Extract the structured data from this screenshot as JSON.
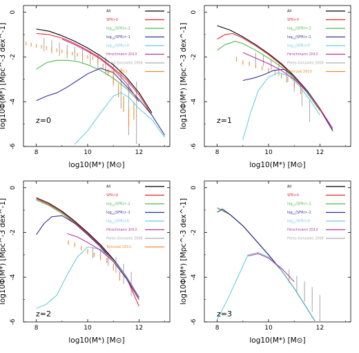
{
  "legend_colors": {
    "All": "#000000",
    "SFR>0": "#e8242c",
    "log10(SFR)>-2": "#4cb848",
    "log10(SFR)>-1": "#2f3192",
    "log10(SFR)>0": "#66ccdd",
    "Hirschmann 2013": "#bb3399",
    "Perez-Gonzalez 2008": "#aaaaaa",
    "Baldry 2012": "#f08a24",
    "Tomczak 2013": "#f08a24"
  },
  "chart_data": [
    {
      "type": "line",
      "panel": "z=0",
      "annotation": "z=0",
      "xlabel": "log10(M*) [M⊙]",
      "ylabel": "log10Φ(M*) [Mpc^-3 dex^-1]",
      "xlim": [
        7.5,
        13.2
      ],
      "ylim": [
        -6,
        0.3
      ],
      "xticks": [
        "8",
        "10",
        "12"
      ],
      "yticks": [
        "0",
        "-2",
        "-4",
        "-6"
      ],
      "legend": [
        "All",
        "SFR>0",
        "log10(SFR)>-2",
        "log10(SFR)>-1",
        "log10(SFR)>0",
        "Hirschmann 2013",
        "Perez-Gonzalez 2008",
        "Baldry 2012"
      ],
      "series": [
        {
          "name": "All",
          "color": "#000000",
          "x": [
            8.0,
            8.5,
            9.0,
            9.5,
            10.0,
            10.5,
            11.0,
            11.5,
            12.0,
            12.5
          ],
          "y": [
            -0.75,
            -0.85,
            -1.05,
            -1.3,
            -1.6,
            -1.95,
            -2.35,
            -2.9,
            -3.6,
            -4.5
          ]
        },
        {
          "name": "SFR>0",
          "color": "#e8242c",
          "x": [
            8.0,
            8.5,
            9.0,
            9.5,
            10.0,
            10.5,
            11.0,
            11.5,
            12.0,
            12.5
          ],
          "y": [
            -0.95,
            -1.0,
            -1.15,
            -1.4,
            -1.7,
            -2.05,
            -2.5,
            -3.0,
            -3.7,
            -4.6
          ]
        },
        {
          "name": "log10(SFR)>-2",
          "color": "#4cb848",
          "x": [
            8.0,
            8.4,
            8.8,
            9.2,
            9.6,
            10.0,
            10.5,
            11.0,
            11.5,
            12.0
          ],
          "y": [
            -2.55,
            -2.25,
            -2.15,
            -2.15,
            -2.2,
            -2.35,
            -2.6,
            -2.95,
            -3.4,
            -4.0
          ]
        },
        {
          "name": "log10(SFR)>-1",
          "color": "#2f3192",
          "x": [
            8.0,
            8.4,
            8.8,
            9.2,
            9.6,
            10.0,
            10.5,
            11.0,
            11.5,
            12.0,
            12.5,
            13.0
          ],
          "y": [
            -3.95,
            -3.75,
            -3.6,
            -3.35,
            -3.05,
            -2.75,
            -2.5,
            -2.7,
            -3.3,
            -3.9,
            -4.6,
            -5.5
          ]
        },
        {
          "name": "log10(SFR)>0",
          "color": "#66ccdd",
          "x": [
            9.5,
            10.0,
            10.5,
            11.0,
            11.3,
            11.6,
            12.0,
            12.5,
            13.0
          ],
          "y": [
            -5.9,
            -5.3,
            -4.5,
            -3.75,
            -3.6,
            -3.8,
            -4.3,
            -4.8,
            -5.6
          ]
        },
        {
          "name": "Hirschmann 2013",
          "color": "#bb3399",
          "x": [
            9.0,
            9.5,
            10.0,
            10.5,
            11.0,
            11.5,
            12.0
          ],
          "y": [
            -1.2,
            -1.45,
            -1.75,
            -2.1,
            -2.55,
            -3.15,
            -4.0
          ]
        }
      ],
      "errorbars": [
        {
          "name": "Perez-Gonzalez 2008",
          "color": "#aaaaaa",
          "x": [
            8.3,
            8.6,
            8.9,
            9.2,
            9.5,
            9.8,
            10.1,
            10.4,
            10.7,
            11.0,
            11.3,
            11.6,
            11.9
          ],
          "y": [
            -1.45,
            -1.55,
            -1.65,
            -1.75,
            -1.85,
            -1.95,
            -2.05,
            -2.2,
            -2.4,
            -2.8,
            -3.4,
            -4.3,
            -4.5
          ],
          "err": [
            0.3,
            0.3,
            0.3,
            0.3,
            0.3,
            0.3,
            0.3,
            0.35,
            0.4,
            0.5,
            0.9,
            1.2,
            1.4
          ]
        },
        {
          "name": "Baldry 2012",
          "color": "#f08a24",
          "x": [
            7.6,
            7.8,
            8.0,
            8.2,
            8.4,
            8.6,
            8.8,
            9.0,
            9.2,
            9.4,
            9.6,
            9.8,
            10.0,
            10.2,
            10.4,
            10.6,
            10.8,
            11.0,
            11.2,
            11.4,
            11.6,
            11.8
          ],
          "y": [
            -1.4,
            -1.45,
            -1.5,
            -1.55,
            -1.6,
            -1.65,
            -1.7,
            -1.75,
            -1.8,
            -1.85,
            -1.9,
            -1.95,
            -2.0,
            -2.05,
            -2.2,
            -2.4,
            -2.7,
            -3.0,
            -3.5,
            -4.1,
            -4.7,
            -4.4
          ],
          "err": [
            0.08,
            0.08,
            0.08,
            0.08,
            0.08,
            0.08,
            0.08,
            0.08,
            0.08,
            0.08,
            0.08,
            0.08,
            0.08,
            0.08,
            0.1,
            0.1,
            0.15,
            0.2,
            0.3,
            0.35,
            0.4,
            0.4
          ]
        }
      ]
    },
    {
      "type": "line",
      "panel": "z=1",
      "annotation": "z=1",
      "xlabel": "log10(M*) [M⊙]",
      "ylabel": "log10Φ(M*) [Mpc^-3 dex^-1]",
      "xlim": [
        7.5,
        13.2
      ],
      "ylim": [
        -6,
        0.3
      ],
      "xticks": [
        "8",
        "10",
        "12"
      ],
      "yticks": [
        "0",
        "-2",
        "-4",
        "-6"
      ],
      "legend": [
        "All",
        "SFR>0",
        "log10(SFR)>-2",
        "log10(SFR)>-1",
        "log10(SFR)>0",
        "Hirschmann 2013",
        "Perez-Gonzalez 2008",
        "Tomczak 2013"
      ],
      "series": [
        {
          "name": "All",
          "color": "#000000",
          "x": [
            8.0,
            8.5,
            9.0,
            9.5,
            10.0,
            10.5,
            11.0,
            11.5,
            12.0,
            12.5
          ],
          "y": [
            -0.6,
            -0.8,
            -1.1,
            -1.45,
            -1.85,
            -2.3,
            -2.85,
            -3.5,
            -4.3,
            -5.3
          ]
        },
        {
          "name": "SFR>0",
          "color": "#e8242c",
          "x": [
            8.0,
            8.3,
            8.6,
            9.0,
            9.5,
            10.0,
            10.5,
            11.0,
            11.5,
            12.0,
            12.5
          ],
          "y": [
            -1.2,
            -1.0,
            -0.95,
            -1.15,
            -1.5,
            -1.9,
            -2.35,
            -2.9,
            -3.55,
            -4.35,
            -5.3
          ]
        },
        {
          "name": "log10(SFR)>-2",
          "color": "#4cb848",
          "x": [
            8.0,
            8.3,
            8.7,
            9.0,
            9.5,
            10.0,
            10.5,
            11.0,
            11.5,
            12.0
          ],
          "y": [
            -1.7,
            -1.45,
            -1.3,
            -1.4,
            -1.7,
            -2.05,
            -2.45,
            -2.95,
            -3.6,
            -4.4
          ]
        },
        {
          "name": "log10(SFR)>-1",
          "color": "#2f3192",
          "x": [
            9.0,
            9.4,
            9.8,
            10.2,
            10.6,
            11.0,
            11.5,
            12.0,
            12.5
          ],
          "y": [
            -3.05,
            -2.95,
            -2.8,
            -2.6,
            -2.55,
            -2.85,
            -3.5,
            -4.3,
            -5.3
          ]
        },
        {
          "name": "log10(SFR)>0",
          "color": "#66ccdd",
          "x": [
            9.0,
            9.3,
            9.6,
            10.0,
            10.4,
            10.8,
            11.2,
            11.6,
            12.0
          ],
          "y": [
            -5.7,
            -4.5,
            -3.5,
            -2.9,
            -2.7,
            -2.85,
            -3.3,
            -3.9,
            -4.6
          ]
        },
        {
          "name": "Hirschmann 2013",
          "color": "#bb3399",
          "x": [
            9.0,
            9.5,
            10.0,
            10.5,
            11.0,
            11.5,
            12.0,
            12.5
          ],
          "y": [
            -1.8,
            -2.05,
            -2.3,
            -2.6,
            -3.0,
            -3.55,
            -4.3,
            -5.2
          ]
        }
      ],
      "errorbars": [
        {
          "name": "Perez-Gonzalez 2008",
          "color": "#aaaaaa",
          "x": [
            9.5,
            9.8,
            10.1,
            10.4,
            10.7,
            11.0,
            11.3,
            11.6
          ],
          "y": [
            -2.05,
            -2.15,
            -2.35,
            -2.55,
            -2.85,
            -3.2,
            -3.8,
            -4.4
          ],
          "err": [
            0.25,
            0.25,
            0.25,
            0.3,
            0.3,
            0.35,
            0.4,
            0.5
          ]
        },
        {
          "name": "Tomczak 2013",
          "color": "#f08a24",
          "x": [
            8.75,
            9.0,
            9.25,
            9.5,
            9.75,
            10.0,
            10.25,
            10.5,
            10.75,
            11.0,
            11.25
          ],
          "y": [
            -2.1,
            -2.25,
            -2.3,
            -2.4,
            -2.5,
            -2.6,
            -2.7,
            -2.85,
            -3.0,
            -3.2,
            -3.45
          ],
          "err": [
            0.1,
            0.1,
            0.1,
            0.1,
            0.1,
            0.1,
            0.1,
            0.1,
            0.12,
            0.15,
            0.2
          ]
        }
      ]
    },
    {
      "type": "line",
      "panel": "z=2",
      "annotation": "z=2",
      "xlabel": "log10(M*) [M⊙]",
      "ylabel": "log10Φ(M*) [Mpc^-3 dex^-1]",
      "xlim": [
        7.5,
        13.2
      ],
      "ylim": [
        -6,
        0.3
      ],
      "xticks": [
        "8",
        "10",
        "12"
      ],
      "yticks": [
        "0",
        "-2",
        "-4",
        "-6"
      ],
      "legend": [
        "All",
        "SFR>0",
        "log10(SFR)>-2",
        "log10(SFR)>-1",
        "log10(SFR)>0",
        "Hirschmann 2013",
        "Perez-Gonzalez 2008",
        "Tomczak 2013"
      ],
      "series": [
        {
          "name": "All",
          "color": "#000000",
          "x": [
            8.0,
            8.5,
            9.0,
            9.5,
            10.0,
            10.5,
            11.0,
            11.5,
            12.0
          ],
          "y": [
            -0.45,
            -0.7,
            -1.05,
            -1.5,
            -2.0,
            -2.55,
            -3.2,
            -3.95,
            -4.9
          ]
        },
        {
          "name": "SFR>0",
          "color": "#e8242c",
          "x": [
            8.0,
            8.5,
            9.0,
            9.5,
            10.0,
            10.5,
            11.0,
            11.5,
            12.0
          ],
          "y": [
            -0.5,
            -0.75,
            -1.1,
            -1.55,
            -2.05,
            -2.6,
            -3.25,
            -4.0,
            -5.3
          ]
        },
        {
          "name": "log10(SFR)>-2",
          "color": "#4cb848",
          "x": [
            8.0,
            8.5,
            9.0,
            9.5,
            10.0,
            10.5,
            11.0,
            11.5,
            12.0
          ],
          "y": [
            -0.55,
            -0.8,
            -1.15,
            -1.6,
            -2.1,
            -2.65,
            -3.3,
            -4.05,
            -5.0
          ]
        },
        {
          "name": "log10(SFR)>-1",
          "color": "#2f3192",
          "x": [
            8.0,
            8.3,
            8.6,
            9.0,
            9.5,
            10.0,
            10.5,
            11.0,
            11.5,
            12.0
          ],
          "y": [
            -2.1,
            -1.6,
            -1.3,
            -1.25,
            -1.6,
            -2.1,
            -2.65,
            -3.3,
            -4.05,
            -5.0
          ]
        },
        {
          "name": "log10(SFR)>0",
          "color": "#66ccdd",
          "x": [
            8.0,
            8.4,
            8.8,
            9.2,
            9.6,
            10.0,
            10.5,
            11.0,
            11.5,
            12.0
          ],
          "y": [
            -5.4,
            -5.2,
            -4.8,
            -3.9,
            -3.1,
            -2.65,
            -2.75,
            -3.25,
            -3.95,
            -4.9
          ]
        },
        {
          "name": "Hirschmann 2013",
          "color": "#bb3399",
          "x": [
            9.2,
            9.6,
            10.0,
            10.5,
            11.0,
            11.5,
            12.0
          ],
          "y": [
            -2.05,
            -2.2,
            -2.45,
            -2.8,
            -3.3,
            -4.0,
            -4.9
          ]
        }
      ],
      "errorbars": [
        {
          "name": "Perez-Gonzalez 2008",
          "color": "#aaaaaa",
          "x": [
            10.2,
            10.5,
            10.8,
            11.1,
            11.4,
            11.7
          ],
          "y": [
            -2.9,
            -3.0,
            -3.2,
            -3.45,
            -3.85,
            -4.3
          ],
          "err": [
            0.25,
            0.25,
            0.3,
            0.35,
            0.45,
            0.55
          ]
        },
        {
          "name": "Tomczak 2013",
          "color": "#f08a24",
          "x": [
            9.25,
            9.5,
            9.75,
            10.0,
            10.25,
            10.5,
            10.75,
            11.0,
            11.25
          ],
          "y": [
            -2.45,
            -2.55,
            -2.7,
            -2.85,
            -3.0,
            -3.1,
            -3.25,
            -3.55,
            -3.95
          ],
          "err": [
            0.1,
            0.1,
            0.1,
            0.1,
            0.1,
            0.1,
            0.12,
            0.15,
            0.2
          ]
        }
      ]
    },
    {
      "type": "line",
      "panel": "z=3",
      "annotation": "z=3",
      "xlabel": "log10(M*) [M⊙]",
      "ylabel": "log10Φ(M*) [Mpc^-3 dex^-1]",
      "xlim": [
        7.5,
        13.2
      ],
      "ylim": [
        -6,
        0.3
      ],
      "xticks": [
        "8",
        "10",
        "12"
      ],
      "yticks": [
        "0",
        "-2",
        "-4",
        "-6"
      ],
      "legend": [
        "All",
        "SFR>0",
        "log10(SFR)>-2",
        "log10(SFR)>-1",
        "log10(SFR)>0",
        "Hirschmann 2013",
        "Perez-Gonzalez 2008"
      ],
      "series": [
        {
          "name": "All",
          "color": "#000000",
          "x": [
            8.0,
            8.5,
            9.0,
            9.5,
            10.0,
            10.5,
            11.0,
            11.5,
            11.8
          ],
          "y": [
            -0.9,
            -1.2,
            -1.7,
            -2.35,
            -3.0,
            -3.7,
            -4.5,
            -5.4,
            -5.95
          ]
        },
        {
          "name": "SFR>0",
          "color": "#e8242c",
          "x": [
            8.0,
            8.5,
            9.0,
            9.5,
            10.0,
            10.5,
            11.0,
            11.5,
            11.8
          ],
          "y": [
            -0.9,
            -1.2,
            -1.7,
            -2.35,
            -3.0,
            -3.7,
            -4.5,
            -5.4,
            -5.95
          ]
        },
        {
          "name": "log10(SFR)>-2",
          "color": "#4cb848",
          "x": [
            8.0,
            8.5,
            9.0,
            9.5,
            10.0,
            10.5,
            11.0,
            11.5,
            11.8
          ],
          "y": [
            -0.9,
            -1.2,
            -1.7,
            -2.35,
            -3.0,
            -3.7,
            -4.5,
            -5.4,
            -5.95
          ]
        },
        {
          "name": "log10(SFR)>-1",
          "color": "#2f3192",
          "x": [
            8.0,
            8.2,
            8.5,
            9.0,
            9.5,
            10.0,
            10.5,
            11.0,
            11.5,
            11.8
          ],
          "y": [
            -1.1,
            -0.95,
            -1.2,
            -1.7,
            -2.35,
            -3.0,
            -3.7,
            -4.5,
            -5.4,
            -5.95
          ]
        },
        {
          "name": "log10(SFR)>0",
          "color": "#66ccdd",
          "x": [
            8.0,
            8.4,
            8.8,
            9.2,
            9.6,
            10.0,
            10.5,
            11.0,
            11.5,
            11.8
          ],
          "y": [
            -5.9,
            -5.0,
            -4.0,
            -3.0,
            -2.9,
            -3.1,
            -3.7,
            -4.5,
            -5.4,
            -5.95
          ]
        },
        {
          "name": "Hirschmann 2013",
          "color": "#bb3399",
          "x": [
            9.2,
            9.6,
            10.0,
            10.5,
            11.0
          ],
          "y": [
            -3.05,
            -2.95,
            -3.15,
            -3.6,
            -4.2
          ]
        }
      ],
      "errorbars": [
        {
          "name": "Perez-Gonzalez 2008",
          "color": "#aaaaaa",
          "x": [
            10.8,
            11.1,
            11.4,
            11.7,
            12.0
          ],
          "y": [
            -3.95,
            -4.3,
            -4.65,
            -5.0,
            -5.4
          ],
          "err": [
            0.3,
            0.35,
            0.45,
            0.55,
            0.6
          ]
        }
      ]
    }
  ]
}
